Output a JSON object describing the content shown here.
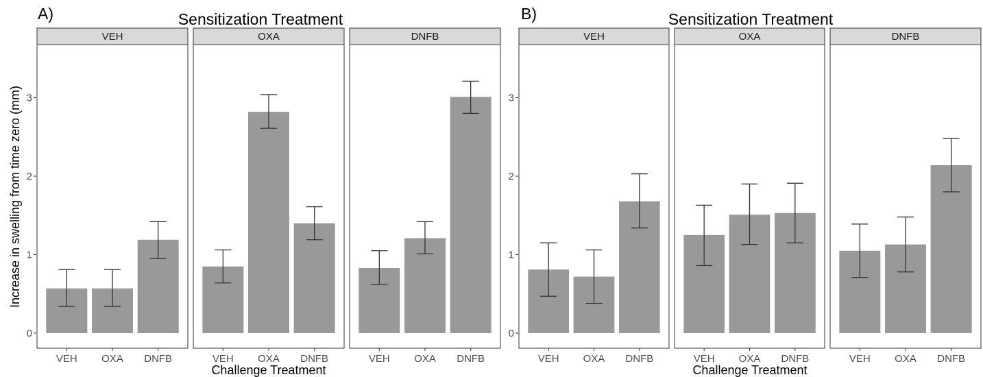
{
  "chart_data": [
    {
      "type": "bar",
      "panel_label": "A)",
      "title": "Sensitization Treatment",
      "xlabel": "Challenge Treatment",
      "ylabel": "Increase in swelling from time zero (mm)",
      "ylim": [
        0,
        3.7
      ],
      "yticks": [
        0,
        1,
        2,
        3
      ],
      "grid": false,
      "categories": [
        "VEH",
        "OXA",
        "DNFB"
      ],
      "facets": [
        {
          "label": "VEH",
          "values": [
            0.57,
            0.57,
            1.19
          ],
          "err_low": [
            0.34,
            0.34,
            0.95
          ],
          "err_high": [
            0.81,
            0.81,
            1.42
          ]
        },
        {
          "label": "OXA",
          "values": [
            0.85,
            2.82,
            1.4
          ],
          "err_low": [
            0.64,
            2.61,
            1.19
          ],
          "err_high": [
            1.06,
            3.04,
            1.61
          ]
        },
        {
          "label": "DNFB",
          "values": [
            0.83,
            1.21,
            3.01
          ],
          "err_low": [
            0.62,
            1.01,
            2.8
          ],
          "err_high": [
            1.05,
            1.42,
            3.21
          ]
        }
      ]
    },
    {
      "type": "bar",
      "panel_label": "B)",
      "title": "Sensitization Treatment",
      "xlabel": "Challenge Treatment",
      "ylabel": "",
      "ylim": [
        0,
        3.7
      ],
      "yticks": [
        0,
        1,
        2,
        3
      ],
      "grid": false,
      "categories": [
        "VEH",
        "OXA",
        "DNFB"
      ],
      "facets": [
        {
          "label": "VEH",
          "values": [
            0.81,
            0.72,
            1.68
          ],
          "err_low": [
            0.47,
            0.38,
            1.34
          ],
          "err_high": [
            1.15,
            1.06,
            2.03
          ]
        },
        {
          "label": "OXA",
          "values": [
            1.25,
            1.51,
            1.53
          ],
          "err_low": [
            0.86,
            1.13,
            1.15
          ],
          "err_high": [
            1.63,
            1.9,
            1.91
          ]
        },
        {
          "label": "DNFB",
          "values": [
            1.05,
            1.13,
            2.14
          ],
          "err_low": [
            0.71,
            0.78,
            1.8
          ],
          "err_high": [
            1.39,
            1.48,
            2.48
          ]
        }
      ]
    }
  ]
}
